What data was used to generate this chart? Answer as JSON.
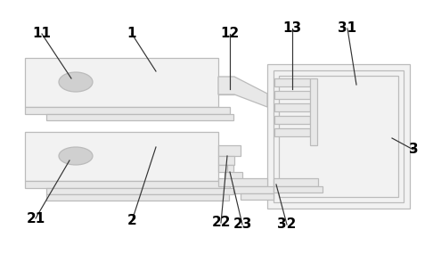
{
  "bg_color": "#ffffff",
  "lc": "#bbbbbb",
  "dc": "#333333",
  "fc_main": "#f2f2f2",
  "fc_strip": "#e8e8e8",
  "fc_hole": "#d0d0d0",
  "figsize": [
    4.86,
    2.85
  ],
  "dpi": 100
}
